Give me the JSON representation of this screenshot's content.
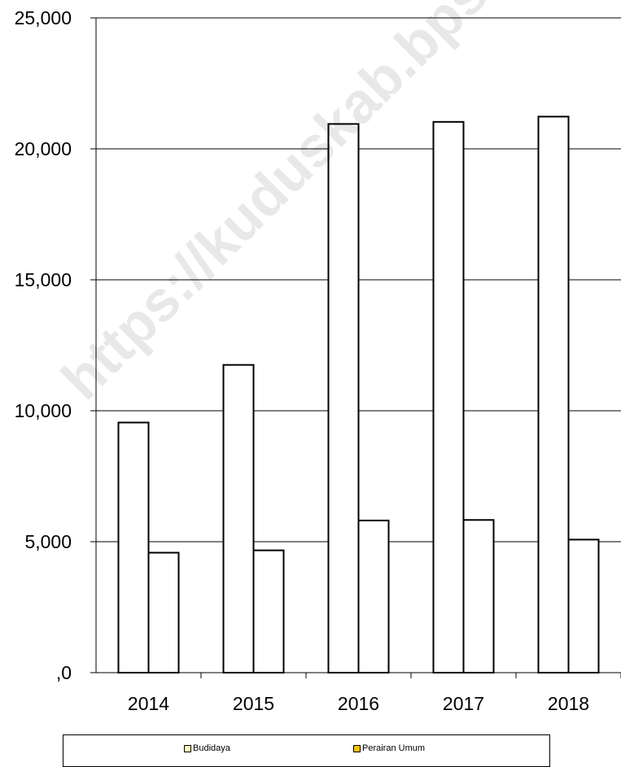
{
  "watermark": "https://kuduskab.bps.go.id",
  "chart_data": {
    "type": "bar",
    "categories": [
      "2014",
      "2015",
      "2016",
      "2017",
      "2018"
    ],
    "series": [
      {
        "name": "Budidaya",
        "values": [
          9550,
          11750,
          20950,
          21030,
          21230
        ],
        "color": "#ffffff",
        "legend_color": "#ffffc0"
      },
      {
        "name": "Perairan Umum",
        "values": [
          4580,
          4670,
          5810,
          5830,
          5080
        ],
        "color": "#ffffff",
        "legend_color": "#ffc000"
      }
    ],
    "ylim": [
      0,
      25000
    ],
    "yticks": [
      0,
      5000,
      10000,
      15000,
      20000,
      25000
    ],
    "ytick_labels": [
      ",0",
      "5,000",
      "10,000",
      "15,000",
      "20,000",
      "25,000"
    ],
    "grid": true,
    "legend_position": "bottom",
    "title": "",
    "xlabel": "",
    "ylabel": ""
  }
}
